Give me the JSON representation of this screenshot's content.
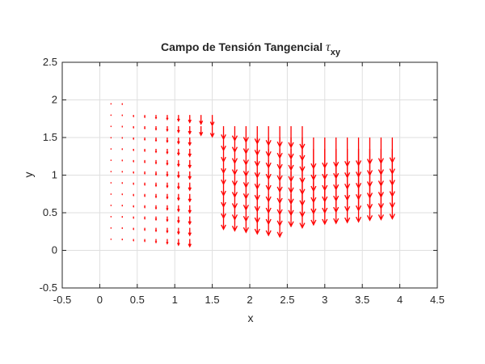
{
  "chart_data": {
    "type": "quiver",
    "title": "Campo de Tensión Tangencial",
    "title_symbol": "τ",
    "title_subscript": "xy",
    "xlabel": "x",
    "ylabel": "y",
    "xlim": [
      -0.5,
      4.5
    ],
    "xticks": [
      -0.5,
      0,
      0.5,
      1,
      1.5,
      2,
      2.5,
      3,
      3.5,
      4,
      4.5
    ],
    "ylim": [
      -0.5,
      2.5
    ],
    "yticks": [
      -0.5,
      0,
      0.5,
      1,
      1.5,
      2,
      2.5
    ],
    "grid": true,
    "color": "#ff0000",
    "columns": [
      {
        "x": 0.15,
        "v": -0.005,
        "y": [
          0.15,
          0.3,
          0.45,
          0.6,
          0.75,
          0.9,
          1.05,
          1.2,
          1.35,
          1.5,
          1.65,
          1.8,
          1.95
        ]
      },
      {
        "x": 0.3,
        "v": -0.01,
        "y": [
          0.15,
          0.3,
          0.45,
          0.6,
          0.75,
          0.9,
          1.05,
          1.2,
          1.35,
          1.5,
          1.65,
          1.8,
          1.95
        ]
      },
      {
        "x": 0.45,
        "v": -0.02,
        "y": [
          0.15,
          0.3,
          0.45,
          0.6,
          0.75,
          0.9,
          1.05,
          1.2,
          1.35,
          1.5,
          1.65,
          1.8
        ]
      },
      {
        "x": 0.6,
        "v": -0.03,
        "y": [
          0.15,
          0.3,
          0.45,
          0.6,
          0.75,
          0.9,
          1.05,
          1.2,
          1.35,
          1.5,
          1.65,
          1.8
        ]
      },
      {
        "x": 0.75,
        "v": -0.045,
        "y": [
          0.15,
          0.3,
          0.45,
          0.6,
          0.75,
          0.9,
          1.05,
          1.2,
          1.35,
          1.5,
          1.65,
          1.8
        ]
      },
      {
        "x": 0.9,
        "v": -0.06,
        "y": [
          0.15,
          0.3,
          0.45,
          0.6,
          0.75,
          0.9,
          1.05,
          1.2,
          1.35,
          1.5,
          1.65,
          1.8
        ]
      },
      {
        "x": 1.05,
        "v": -0.08,
        "y": [
          0.15,
          0.3,
          0.45,
          0.6,
          0.75,
          0.9,
          1.05,
          1.2,
          1.35,
          1.5,
          1.65,
          1.8
        ]
      },
      {
        "x": 1.2,
        "v": -0.1,
        "y": [
          0.15,
          0.3,
          0.45,
          0.6,
          0.75,
          0.9,
          1.05,
          1.2,
          1.35,
          1.5,
          1.65,
          1.8
        ]
      },
      {
        "x": 1.35,
        "v": -0.12,
        "y": [
          1.65,
          1.8
        ]
      },
      {
        "x": 1.5,
        "v": -0.14,
        "y": [
          1.65,
          1.8
        ]
      },
      {
        "x": 1.65,
        "v": -0.17,
        "y": [
          0.45,
          0.6,
          0.75,
          0.9,
          1.05,
          1.2,
          1.35,
          1.5,
          1.65
        ]
      },
      {
        "x": 1.8,
        "v": -0.19,
        "y": [
          0.45,
          0.6,
          0.75,
          0.9,
          1.05,
          1.2,
          1.35,
          1.5,
          1.65
        ]
      },
      {
        "x": 1.95,
        "v": -0.21,
        "y": [
          0.45,
          0.6,
          0.75,
          0.9,
          1.05,
          1.2,
          1.35,
          1.5,
          1.65
        ]
      },
      {
        "x": 2.1,
        "v": -0.23,
        "y": [
          0.45,
          0.6,
          0.75,
          0.9,
          1.05,
          1.2,
          1.35,
          1.5,
          1.65
        ]
      },
      {
        "x": 2.25,
        "v": -0.25,
        "y": [
          0.45,
          0.6,
          0.75,
          0.9,
          1.05,
          1.2,
          1.35,
          1.5,
          1.65
        ]
      },
      {
        "x": 2.4,
        "v": -0.27,
        "y": [
          0.45,
          0.6,
          0.75,
          0.9,
          1.05,
          1.2,
          1.35,
          1.5,
          1.65
        ]
      },
      {
        "x": 2.55,
        "v": -0.28,
        "y": [
          0.6,
          0.75,
          0.9,
          1.05,
          1.2,
          1.35,
          1.5,
          1.65
        ]
      },
      {
        "x": 2.7,
        "v": -0.3,
        "y": [
          0.6,
          0.75,
          0.9,
          1.05,
          1.2,
          1.35,
          1.5,
          1.65
        ]
      },
      {
        "x": 2.85,
        "v": -0.41,
        "y": [
          0.75,
          0.9,
          1.05,
          1.2,
          1.35,
          1.5
        ]
      },
      {
        "x": 3.0,
        "v": -0.4,
        "y": [
          0.75,
          0.9,
          1.05,
          1.2,
          1.35,
          1.5
        ]
      },
      {
        "x": 3.15,
        "v": -0.39,
        "y": [
          0.75,
          0.9,
          1.05,
          1.2,
          1.35,
          1.5
        ]
      },
      {
        "x": 3.3,
        "v": -0.38,
        "y": [
          0.75,
          0.9,
          1.05,
          1.2,
          1.35,
          1.5
        ]
      },
      {
        "x": 3.45,
        "v": -0.37,
        "y": [
          0.75,
          0.9,
          1.05,
          1.2,
          1.35,
          1.5
        ]
      },
      {
        "x": 3.6,
        "v": -0.35,
        "y": [
          0.75,
          0.9,
          1.05,
          1.2,
          1.35,
          1.5
        ]
      },
      {
        "x": 3.75,
        "v": -0.34,
        "y": [
          0.75,
          0.9,
          1.05,
          1.2,
          1.35,
          1.5
        ]
      },
      {
        "x": 3.9,
        "v": -0.33,
        "y": [
          0.75,
          0.9,
          1.05,
          1.2,
          1.35,
          1.5
        ]
      }
    ]
  }
}
